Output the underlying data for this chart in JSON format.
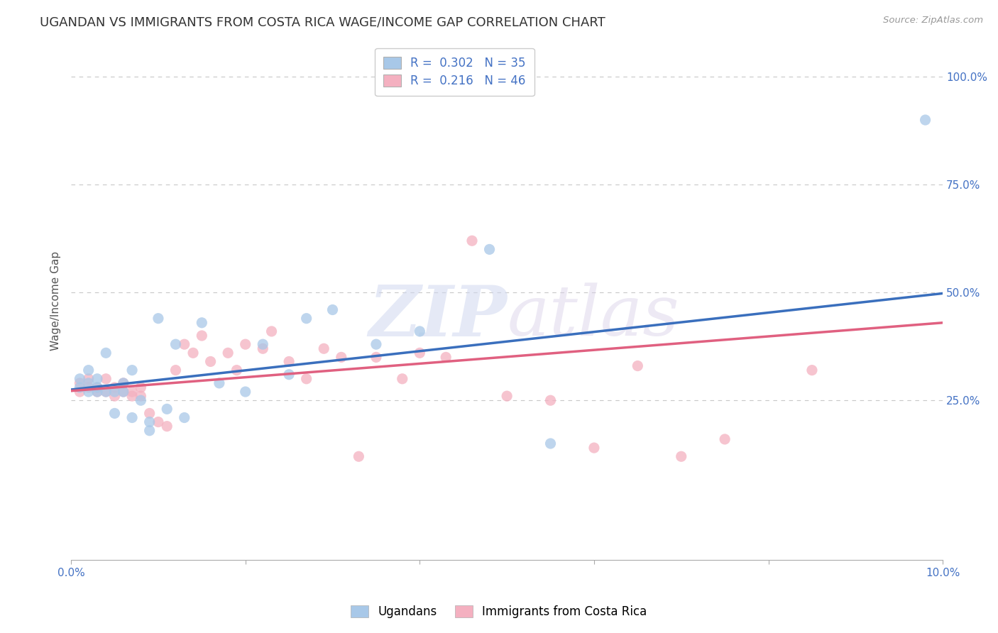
{
  "title": "UGANDAN VS IMMIGRANTS FROM COSTA RICA WAGE/INCOME GAP CORRELATION CHART",
  "source": "Source: ZipAtlas.com",
  "ylabel": "Wage/Income Gap",
  "xlim": [
    0.0,
    0.1
  ],
  "ylim": [
    -0.12,
    1.08
  ],
  "yticks": [
    0.25,
    0.5,
    0.75,
    1.0
  ],
  "ytick_labels": [
    "25.0%",
    "50.0%",
    "75.0%",
    "100.0%"
  ],
  "xticks": [
    0.0,
    0.02,
    0.04,
    0.06,
    0.08,
    0.1
  ],
  "xtick_labels": [
    "0.0%",
    "",
    "",
    "",
    "",
    "10.0%"
  ],
  "blue_R": 0.302,
  "blue_N": 35,
  "pink_R": 0.216,
  "pink_N": 46,
  "blue_color": "#a8c8e8",
  "pink_color": "#f4b0c0",
  "blue_line_color": "#3a6fbd",
  "pink_line_color": "#e06080",
  "legend_label_blue": "Ugandans",
  "legend_label_pink": "Immigrants from Costa Rica",
  "watermark_zip": "ZIP",
  "watermark_atlas": "atlas",
  "blue_scatter_x": [
    0.001,
    0.001,
    0.002,
    0.002,
    0.002,
    0.003,
    0.003,
    0.003,
    0.004,
    0.004,
    0.005,
    0.005,
    0.006,
    0.006,
    0.007,
    0.007,
    0.008,
    0.009,
    0.009,
    0.01,
    0.011,
    0.012,
    0.013,
    0.015,
    0.017,
    0.02,
    0.022,
    0.025,
    0.027,
    0.03,
    0.035,
    0.04,
    0.048,
    0.055,
    0.098
  ],
  "blue_scatter_y": [
    0.28,
    0.3,
    0.32,
    0.29,
    0.27,
    0.28,
    0.3,
    0.27,
    0.36,
    0.27,
    0.27,
    0.22,
    0.27,
    0.29,
    0.32,
    0.21,
    0.25,
    0.2,
    0.18,
    0.44,
    0.23,
    0.38,
    0.21,
    0.43,
    0.29,
    0.27,
    0.38,
    0.31,
    0.44,
    0.46,
    0.38,
    0.41,
    0.6,
    0.15,
    0.9
  ],
  "pink_scatter_x": [
    0.001,
    0.001,
    0.002,
    0.002,
    0.003,
    0.003,
    0.004,
    0.004,
    0.005,
    0.005,
    0.006,
    0.006,
    0.007,
    0.007,
    0.008,
    0.008,
    0.009,
    0.01,
    0.011,
    0.012,
    0.013,
    0.014,
    0.015,
    0.016,
    0.018,
    0.019,
    0.02,
    0.022,
    0.023,
    0.025,
    0.027,
    0.029,
    0.031,
    0.033,
    0.035,
    0.038,
    0.04,
    0.043,
    0.046,
    0.05,
    0.055,
    0.06,
    0.065,
    0.07,
    0.075,
    0.085
  ],
  "pink_scatter_y": [
    0.27,
    0.29,
    0.28,
    0.3,
    0.27,
    0.28,
    0.27,
    0.3,
    0.28,
    0.26,
    0.29,
    0.27,
    0.27,
    0.26,
    0.28,
    0.26,
    0.22,
    0.2,
    0.19,
    0.32,
    0.38,
    0.36,
    0.4,
    0.34,
    0.36,
    0.32,
    0.38,
    0.37,
    0.41,
    0.34,
    0.3,
    0.37,
    0.35,
    0.12,
    0.35,
    0.3,
    0.36,
    0.35,
    0.62,
    0.26,
    0.25,
    0.14,
    0.33,
    0.12,
    0.16,
    0.32
  ],
  "blue_line_x0": 0.0,
  "blue_line_y0": 0.275,
  "blue_line_x1": 0.1,
  "blue_line_y1": 0.498,
  "pink_line_x0": 0.0,
  "pink_line_y0": 0.272,
  "pink_line_x1": 0.1,
  "pink_line_y1": 0.43,
  "background_color": "#ffffff",
  "grid_color": "#c8c8c8",
  "axis_color": "#4472c4",
  "title_color": "#333333",
  "title_fontsize": 13,
  "ylabel_fontsize": 11,
  "tick_fontsize": 11,
  "legend_fontsize": 12,
  "scatter_size": 120,
  "scatter_alpha": 0.75
}
